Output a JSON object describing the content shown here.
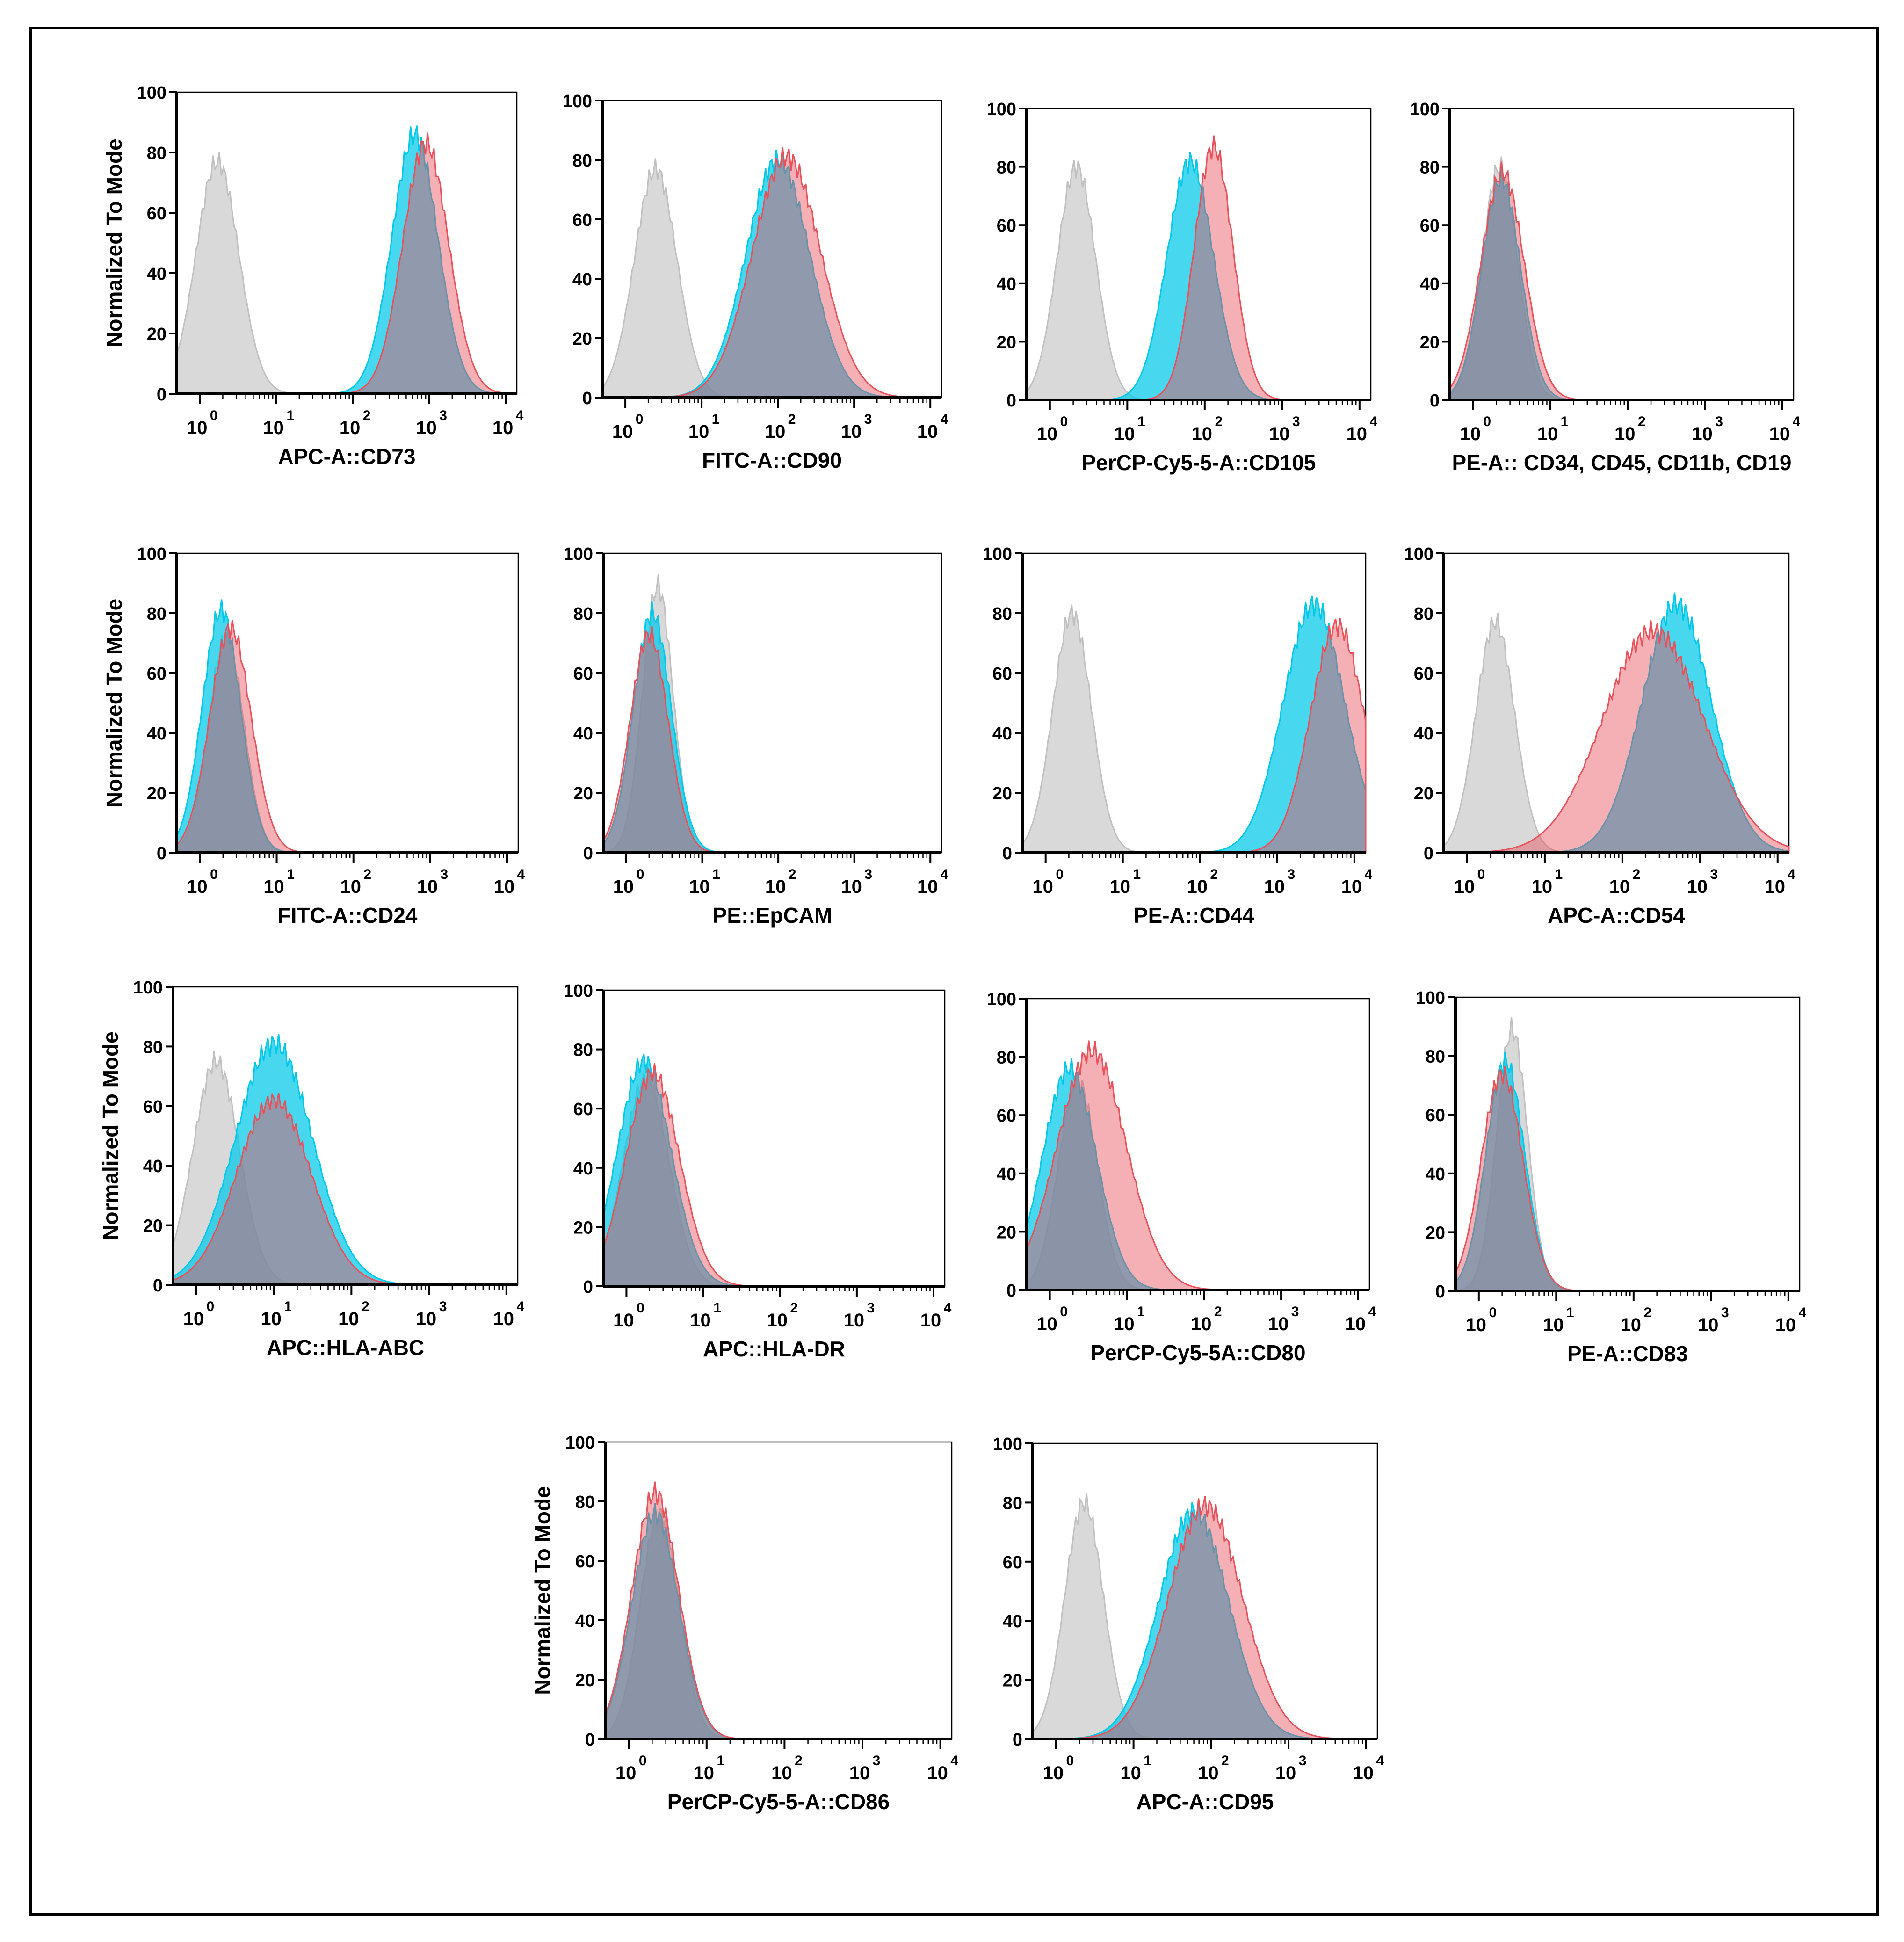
{
  "colors": {
    "isotype": "#c0c0c0",
    "cyan": "#00c8e8",
    "red": "#e8505a"
  },
  "common": {
    "ylabel": "Normalized To Mode",
    "yticks": [
      "0",
      "20",
      "40",
      "60",
      "80",
      "100"
    ],
    "xtick_base": "10",
    "xtick_exps": [
      "0",
      "1",
      "2",
      "3",
      "4"
    ]
  },
  "chart_data": [
    {
      "type": "area",
      "xlabel": "APC-A::CD73",
      "ylabel": "Normalized To Mode",
      "xscale": "log",
      "xlim": [
        0.5,
        14000
      ],
      "ylim": [
        0,
        100
      ],
      "series": [
        {
          "name": "isotype",
          "peak_x": 1.7,
          "peak_y": 77,
          "width": 0.28
        },
        {
          "name": "cyan",
          "peak_x": 650,
          "peak_y": 86,
          "width": 0.3
        },
        {
          "name": "red",
          "peak_x": 900,
          "peak_y": 83,
          "width": 0.3
        }
      ]
    },
    {
      "type": "area",
      "xlabel": "FITC-A::CD90",
      "ylabel": "Normalized To Mode",
      "xscale": "log",
      "xlim": [
        0.5,
        14000
      ],
      "ylim": [
        0,
        100
      ],
      "series": [
        {
          "name": "isotype",
          "peak_x": 2.5,
          "peak_y": 77,
          "width": 0.28
        },
        {
          "name": "cyan",
          "peak_x": 100,
          "peak_y": 80,
          "width": 0.42
        },
        {
          "name": "red",
          "peak_x": 130,
          "peak_y": 81,
          "width": 0.45
        }
      ]
    },
    {
      "type": "area",
      "xlabel": "PerCP-Cy5-5-A::CD105",
      "ylabel": "Normalized To Mode",
      "xscale": "log",
      "xlim": [
        0.5,
        14000
      ],
      "ylim": [
        0,
        100
      ],
      "series": [
        {
          "name": "isotype",
          "peak_x": 2.2,
          "peak_y": 80,
          "width": 0.25
        },
        {
          "name": "cyan",
          "peak_x": 65,
          "peak_y": 82,
          "width": 0.3
        },
        {
          "name": "red",
          "peak_x": 130,
          "peak_y": 87,
          "width": 0.25
        }
      ]
    },
    {
      "type": "area",
      "xlabel": "PE-A:: CD34, CD45, CD11b, CD19",
      "ylabel": "Normalized To Mode",
      "xscale": "log",
      "xlim": [
        0.5,
        14000
      ],
      "ylim": [
        0,
        100
      ],
      "series": [
        {
          "name": "isotype",
          "peak_x": 2.2,
          "peak_y": 80,
          "width": 0.23
        },
        {
          "name": "cyan",
          "peak_x": 2.3,
          "peak_y": 76,
          "width": 0.25
        },
        {
          "name": "red",
          "peak_x": 2.4,
          "peak_y": 78,
          "width": 0.28
        }
      ]
    },
    {
      "type": "area",
      "xlabel": "FITC-A::CD24",
      "ylabel": "Normalized To Mode",
      "xscale": "log",
      "xlim": [
        0.5,
        14000
      ],
      "ylim": [
        0,
        100
      ],
      "series": [
        {
          "name": "isotype",
          "peak_x": 2.2,
          "peak_y": 72,
          "width": 0.23
        },
        {
          "name": "cyan",
          "peak_x": 1.9,
          "peak_y": 81,
          "width": 0.25
        },
        {
          "name": "red",
          "peak_x": 2.5,
          "peak_y": 75,
          "width": 0.27
        }
      ]
    },
    {
      "type": "area",
      "xlabel": "PE::EpCAM",
      "ylabel": "Normalized To Mode",
      "xscale": "log",
      "xlim": [
        0.5,
        14000
      ],
      "ylim": [
        0,
        100
      ],
      "series": [
        {
          "name": "isotype",
          "peak_x": 2.6,
          "peak_y": 89,
          "width": 0.2
        },
        {
          "name": "cyan",
          "peak_x": 2.2,
          "peak_y": 80,
          "width": 0.25
        },
        {
          "name": "red",
          "peak_x": 2.0,
          "peak_y": 73,
          "width": 0.25
        }
      ]
    },
    {
      "type": "area",
      "xlabel": "PE-A::CD44",
      "ylabel": "Normalized To Mode",
      "xscale": "log",
      "xlim": [
        0.5,
        14000
      ],
      "ylim": [
        0,
        100
      ],
      "series": [
        {
          "name": "isotype",
          "peak_x": 2.2,
          "peak_y": 80,
          "width": 0.25
        },
        {
          "name": "cyan",
          "peak_x": 3000,
          "peak_y": 83,
          "width": 0.4
        },
        {
          "name": "red",
          "peak_x": 6000,
          "peak_y": 76,
          "width": 0.35
        }
      ]
    },
    {
      "type": "area",
      "xlabel": "APC-A::CD54",
      "ylabel": "Normalized To Mode",
      "xscale": "log",
      "xlim": [
        0.5,
        14000
      ],
      "ylim": [
        0,
        100
      ],
      "series": [
        {
          "name": "isotype",
          "peak_x": 2.3,
          "peak_y": 77,
          "width": 0.25
        },
        {
          "name": "cyan",
          "peak_x": 500,
          "peak_y": 83,
          "width": 0.45
        },
        {
          "name": "red",
          "peak_x": 250,
          "peak_y": 74,
          "width": 0.65
        }
      ]
    },
    {
      "type": "area",
      "xlabel": "APC::HLA-ABC",
      "ylabel": "Normalized To Mode",
      "xscale": "log",
      "xlim": [
        0.5,
        14000
      ],
      "ylim": [
        0,
        100
      ],
      "series": [
        {
          "name": "isotype",
          "peak_x": 1.8,
          "peak_y": 75,
          "width": 0.3
        },
        {
          "name": "cyan",
          "peak_x": 10,
          "peak_y": 81,
          "width": 0.5
        },
        {
          "name": "red",
          "peak_x": 10,
          "peak_y": 62,
          "width": 0.48
        }
      ]
    },
    {
      "type": "area",
      "xlabel": "APC::HLA-DR",
      "ylabel": "Normalized To Mode",
      "xscale": "log",
      "xlim": [
        0.5,
        14000
      ],
      "ylim": [
        0,
        100
      ],
      "series": [
        {
          "name": "isotype",
          "peak_x": 1.8,
          "peak_y": 70,
          "width": 0.3
        },
        {
          "name": "cyan",
          "peak_x": 1.7,
          "peak_y": 76,
          "width": 0.35
        },
        {
          "name": "red",
          "peak_x": 2.2,
          "peak_y": 72,
          "width": 0.35
        }
      ]
    },
    {
      "type": "area",
      "xlabel": "PerCP-Cy5-5A::CD80",
      "ylabel": "Normalized To Mode",
      "xscale": "log",
      "xlim": [
        0.5,
        14000
      ],
      "ylim": [
        0,
        100
      ],
      "series": [
        {
          "name": "isotype",
          "peak_x": 2.3,
          "peak_y": 72,
          "width": 0.25
        },
        {
          "name": "cyan",
          "peak_x": 1.8,
          "peak_y": 76,
          "width": 0.35
        },
        {
          "name": "red",
          "peak_x": 3.5,
          "peak_y": 82,
          "width": 0.45
        }
      ]
    },
    {
      "type": "area",
      "xlabel": "PE-A::CD83",
      "ylabel": "Normalized To Mode",
      "xscale": "log",
      "xlim": [
        0.5,
        14000
      ],
      "ylim": [
        0,
        100
      ],
      "series": [
        {
          "name": "isotype",
          "peak_x": 2.7,
          "peak_y": 89,
          "width": 0.2
        },
        {
          "name": "cyan",
          "peak_x": 2.2,
          "peak_y": 78,
          "width": 0.25
        },
        {
          "name": "red",
          "peak_x": 2.0,
          "peak_y": 74,
          "width": 0.27
        }
      ]
    },
    {
      "type": "area",
      "xlabel": "PerCP-Cy5-5-A::CD86",
      "ylabel": "Normalized To Mode",
      "xscale": "log",
      "xlim": [
        0.5,
        14000
      ],
      "ylim": [
        0,
        100
      ],
      "series": [
        {
          "name": "isotype",
          "peak_x": 2.5,
          "peak_y": 76,
          "width": 0.25
        },
        {
          "name": "cyan",
          "peak_x": 2.2,
          "peak_y": 76,
          "width": 0.3
        },
        {
          "name": "red",
          "peak_x": 2.2,
          "peak_y": 83,
          "width": 0.3
        }
      ]
    },
    {
      "type": "area",
      "xlabel": "APC-A::CD95",
      "ylabel": "Normalized To Mode",
      "xscale": "log",
      "xlim": [
        0.5,
        14000
      ],
      "ylim": [
        0,
        100
      ],
      "series": [
        {
          "name": "isotype",
          "peak_x": 2.3,
          "peak_y": 80,
          "width": 0.25
        },
        {
          "name": "cyan",
          "peak_x": 60,
          "peak_y": 77,
          "width": 0.45
        },
        {
          "name": "red",
          "peak_x": 85,
          "peak_y": 79,
          "width": 0.48
        }
      ]
    }
  ]
}
